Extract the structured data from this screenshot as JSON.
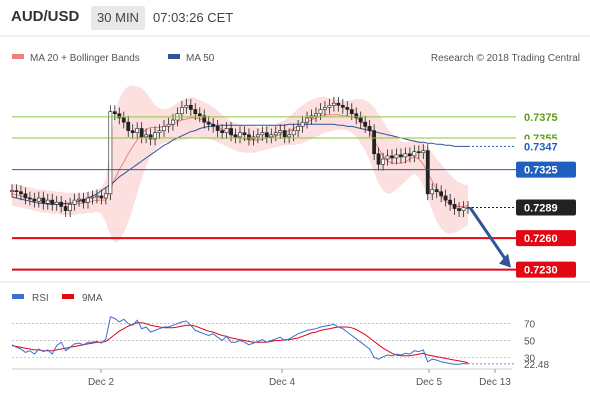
{
  "header": {
    "symbol": "AUD/USD",
    "timeframe": "30 MIN",
    "time": "07:03:26 CET"
  },
  "legend": {
    "ma20": "MA 20 + Bollinger Bands",
    "ma50": "MA 50",
    "credit": "Research © 2018 Trading Central"
  },
  "rsi_legend": {
    "rsi": "RSI",
    "ma": "9MA"
  },
  "colors": {
    "resistance": "#8dc63f",
    "pivot": "#1f5fbf",
    "support": "#e30613",
    "band_fill": "#fcd9d9",
    "ma20": "#f08080",
    "ma50": "#2f5597",
    "candle": "#222222",
    "rsi": "#3b6fd1",
    "rsi_ma": "#e30613",
    "last_price": "#222222",
    "projection": "#2f5597"
  },
  "chart_data": [
    {
      "type": "candlestick",
      "title": "AUD/USD 30 MIN",
      "x_ticks": [
        "Dec 2",
        "Dec 4",
        "Dec 5",
        "Dec 13"
      ],
      "ylim": [
        0.7224,
        0.741
      ],
      "levels": [
        {
          "label": "0.7375",
          "value": 0.7375,
          "kind": "resistance"
        },
        {
          "label": "0.7355",
          "value": 0.7355,
          "kind": "resistance"
        },
        {
          "label": "0.7347",
          "value": 0.7347,
          "kind": "ma50"
        },
        {
          "label": "0.7325",
          "value": 0.7325,
          "kind": "pivot"
        },
        {
          "label": "0.7289",
          "value": 0.7289,
          "kind": "last"
        },
        {
          "label": "0.7260",
          "value": 0.726,
          "kind": "support"
        },
        {
          "label": "0.7230",
          "value": 0.723,
          "kind": "support"
        }
      ],
      "close": [
        0.7305,
        0.7304,
        0.7302,
        0.7298,
        0.7297,
        0.7295,
        0.7298,
        0.7293,
        0.7296,
        0.7292,
        0.7294,
        0.729,
        0.7286,
        0.7292,
        0.7296,
        0.7297,
        0.7294,
        0.7298,
        0.7299,
        0.73,
        0.7298,
        0.7302,
        0.738,
        0.7378,
        0.7374,
        0.737,
        0.7362,
        0.736,
        0.7364,
        0.7356,
        0.7358,
        0.7354,
        0.736,
        0.7362,
        0.7366,
        0.7368,
        0.7372,
        0.7378,
        0.7384,
        0.7386,
        0.7382,
        0.7378,
        0.7376,
        0.737,
        0.7368,
        0.7366,
        0.7362,
        0.736,
        0.7364,
        0.7358,
        0.7356,
        0.736,
        0.7358,
        0.7354,
        0.7356,
        0.7358,
        0.736,
        0.7356,
        0.7358,
        0.736,
        0.7362,
        0.7356,
        0.7358,
        0.7362,
        0.7366,
        0.737,
        0.7374,
        0.7376,
        0.7378,
        0.7382,
        0.7384,
        0.7386,
        0.7388,
        0.7386,
        0.7384,
        0.7382,
        0.7378,
        0.7374,
        0.737,
        0.7366,
        0.7362,
        0.734,
        0.733,
        0.7335,
        0.7338,
        0.7336,
        0.7339,
        0.7337,
        0.734,
        0.7338,
        0.7342,
        0.7341,
        0.7343,
        0.7302,
        0.7306,
        0.7304,
        0.73,
        0.7296,
        0.7292,
        0.7288,
        0.7286,
        0.7289,
        0.7289
      ],
      "bb_upper": [
        0.7312,
        0.7311,
        0.731,
        0.7309,
        0.7308,
        0.7307,
        0.7306,
        0.7306,
        0.7305,
        0.7305,
        0.7304,
        0.7304,
        0.7303,
        0.7303,
        0.7303,
        0.7303,
        0.7303,
        0.7304,
        0.7305,
        0.7306,
        0.7308,
        0.7316,
        0.735,
        0.7378,
        0.7392,
        0.74,
        0.7404,
        0.7405,
        0.7404,
        0.7402,
        0.7398,
        0.7392,
        0.7386,
        0.7383,
        0.7382,
        0.7383,
        0.7385,
        0.7388,
        0.7391,
        0.7393,
        0.7394,
        0.7393,
        0.7391,
        0.7389,
        0.7387,
        0.7384,
        0.7381,
        0.7377,
        0.7374,
        0.7371,
        0.7369,
        0.7368,
        0.7367,
        0.7366,
        0.7366,
        0.7365,
        0.7365,
        0.7366,
        0.7367,
        0.7368,
        0.737,
        0.7372,
        0.7375,
        0.7379,
        0.7383,
        0.7386,
        0.7389,
        0.7391,
        0.7393,
        0.7394,
        0.7394,
        0.7393,
        0.7392,
        0.7391,
        0.739,
        0.739,
        0.7391,
        0.7392,
        0.7392,
        0.7391,
        0.7388,
        0.7384,
        0.7378,
        0.7371,
        0.7364,
        0.7359,
        0.7355,
        0.7352,
        0.7351,
        0.7352,
        0.7353,
        0.7352,
        0.735,
        0.7346,
        0.7341,
        0.7335,
        0.733,
        0.7325,
        0.732,
        0.7316,
        0.7313,
        0.7311,
        0.731
      ],
      "bb_lower": [
        0.7291,
        0.729,
        0.7289,
        0.7288,
        0.7287,
        0.7286,
        0.7285,
        0.7284,
        0.7284,
        0.7283,
        0.7283,
        0.7282,
        0.7282,
        0.7282,
        0.7282,
        0.7283,
        0.7283,
        0.7284,
        0.7284,
        0.7285,
        0.7283,
        0.7275,
        0.7262,
        0.7255,
        0.7258,
        0.7265,
        0.7275,
        0.7288,
        0.7302,
        0.7316,
        0.7328,
        0.7338,
        0.7344,
        0.7348,
        0.735,
        0.7351,
        0.7352,
        0.7352,
        0.7353,
        0.7354,
        0.7355,
        0.7356,
        0.7356,
        0.7355,
        0.7354,
        0.7353,
        0.7351,
        0.7349,
        0.7347,
        0.7345,
        0.7343,
        0.7342,
        0.7341,
        0.7341,
        0.7341,
        0.7342,
        0.7343,
        0.7344,
        0.7345,
        0.7346,
        0.7347,
        0.7348,
        0.7348,
        0.7348,
        0.7349,
        0.735,
        0.7352,
        0.7354,
        0.7356,
        0.7358,
        0.736,
        0.7361,
        0.7362,
        0.7363,
        0.7363,
        0.7362,
        0.736,
        0.7356,
        0.735,
        0.7343,
        0.7334,
        0.7322,
        0.7312,
        0.7305,
        0.7302,
        0.7303,
        0.7306,
        0.731,
        0.7314,
        0.7318,
        0.7321,
        0.7318,
        0.731,
        0.7298,
        0.7286,
        0.7276,
        0.7269,
        0.7265,
        0.7264,
        0.7265,
        0.7267,
        0.727,
        0.7272
      ],
      "ma20": [
        0.7302,
        0.7301,
        0.73,
        0.7299,
        0.7298,
        0.7297,
        0.7296,
        0.7295,
        0.7295,
        0.7294,
        0.7293,
        0.7293,
        0.7292,
        0.7292,
        0.7292,
        0.7293,
        0.7293,
        0.7294,
        0.7295,
        0.7296,
        0.7296,
        0.7296,
        0.7306,
        0.7316,
        0.7325,
        0.7332,
        0.734,
        0.7347,
        0.7353,
        0.7359,
        0.7363,
        0.7365,
        0.7365,
        0.7365,
        0.7366,
        0.7367,
        0.7368,
        0.737,
        0.7372,
        0.7373,
        0.7374,
        0.7374,
        0.7373,
        0.7372,
        0.737,
        0.7368,
        0.7366,
        0.7363,
        0.7361,
        0.7358,
        0.7356,
        0.7355,
        0.7354,
        0.7353,
        0.7353,
        0.7353,
        0.7354,
        0.7355,
        0.7356,
        0.7357,
        0.7358,
        0.736,
        0.7362,
        0.7364,
        0.7366,
        0.7368,
        0.737,
        0.7372,
        0.7374,
        0.7376,
        0.7377,
        0.7377,
        0.7377,
        0.7377,
        0.7376,
        0.7376,
        0.7375,
        0.7374,
        0.7371,
        0.7367,
        0.7361,
        0.7353,
        0.7345,
        0.7338,
        0.7333,
        0.7331,
        0.7331,
        0.7331,
        0.7332,
        0.7335,
        0.7337,
        0.7335,
        0.733,
        0.7322,
        0.7314,
        0.7306,
        0.73,
        0.7295,
        0.7292,
        0.729,
        0.729,
        0.729,
        0.7291
      ],
      "ma50": [
        0.7299,
        0.7298,
        0.7297,
        0.7296,
        0.7295,
        0.7294,
        0.7293,
        0.7293,
        0.7292,
        0.7292,
        0.7292,
        0.7292,
        0.7293,
        0.7293,
        0.7294,
        0.7295,
        0.7296,
        0.7298,
        0.73,
        0.7302,
        0.7305,
        0.7308,
        0.7311,
        0.7314,
        0.7318,
        0.7321,
        0.7324,
        0.7327,
        0.733,
        0.7333,
        0.7336,
        0.7339,
        0.7342,
        0.7345,
        0.7348,
        0.735,
        0.7353,
        0.7355,
        0.7357,
        0.7359,
        0.7361,
        0.7362,
        0.7364,
        0.7365,
        0.7366,
        0.7366,
        0.7367,
        0.7367,
        0.7367,
        0.7367,
        0.7367,
        0.7367,
        0.7367,
        0.7367,
        0.7367,
        0.7367,
        0.7367,
        0.7367,
        0.7367,
        0.7367,
        0.7367,
        0.7367,
        0.7368,
        0.7368,
        0.7368,
        0.7368,
        0.7368,
        0.7368,
        0.7368,
        0.7368,
        0.7368,
        0.7368,
        0.7368,
        0.7367,
        0.7367,
        0.7366,
        0.7366,
        0.7365,
        0.7364,
        0.7363,
        0.7362,
        0.7361,
        0.736,
        0.7359,
        0.7358,
        0.7357,
        0.7356,
        0.7355,
        0.7354,
        0.7353,
        0.7352,
        0.7351,
        0.7351,
        0.735,
        0.735,
        0.7349,
        0.7349,
        0.7348,
        0.7348,
        0.7347,
        0.7347,
        0.7347,
        0.7347
      ]
    },
    {
      "type": "line",
      "title": "RSI",
      "ylim": [
        20,
        86
      ],
      "y_ticks": [
        "70",
        "50",
        "30"
      ],
      "last_value_label": "22.48",
      "series": [
        {
          "name": "RSI",
          "values": [
            45,
            42,
            40,
            36,
            38,
            34,
            40,
            37,
            39,
            34,
            44,
            48,
            38,
            42,
            46,
            47,
            45,
            48,
            48,
            49,
            47,
            52,
            78,
            76,
            72,
            75,
            70,
            68,
            74,
            64,
            66,
            60,
            62,
            64,
            66,
            66,
            68,
            70,
            72,
            73,
            68,
            62,
            60,
            58,
            56,
            58,
            54,
            50,
            55,
            48,
            48,
            50,
            48,
            45,
            47,
            49,
            51,
            48,
            50,
            52,
            54,
            50,
            52,
            55,
            58,
            60,
            62,
            63,
            64,
            66,
            67,
            68,
            69,
            66,
            64,
            60,
            56,
            52,
            48,
            44,
            40,
            30,
            28,
            31,
            33,
            32,
            34,
            33,
            35,
            34,
            38,
            37,
            39,
            25,
            28,
            27,
            25,
            24,
            23,
            22,
            22,
            23,
            22.48
          ]
        },
        {
          "name": "9MA",
          "values": [
            44,
            43,
            42,
            41,
            40,
            39,
            39,
            38,
            38,
            38,
            39,
            40,
            41,
            42,
            43,
            44,
            45,
            46,
            47,
            48,
            48,
            49,
            53,
            57,
            61,
            64,
            67,
            69,
            71,
            71,
            70,
            68,
            67,
            66,
            65,
            65,
            65,
            66,
            67,
            68,
            68,
            67,
            65,
            63,
            61,
            60,
            58,
            56,
            55,
            53,
            52,
            51,
            50,
            49,
            48,
            48,
            48,
            48,
            49,
            50,
            50,
            51,
            51,
            52,
            53,
            55,
            57,
            59,
            60,
            62,
            63,
            64,
            65,
            66,
            66,
            66,
            65,
            63,
            60,
            57,
            53,
            49,
            45,
            41,
            38,
            35,
            33,
            32,
            32,
            32,
            33,
            34,
            35,
            33,
            32,
            31,
            30,
            29,
            28,
            27,
            26,
            25,
            24
          ]
        }
      ]
    }
  ]
}
